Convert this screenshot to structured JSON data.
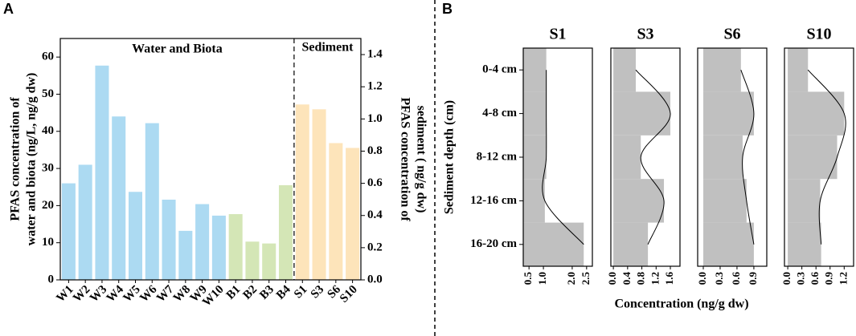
{
  "chart_data": [
    {
      "type": "bar",
      "label": "A",
      "categories": [
        "W1",
        "W2",
        "W3",
        "W4",
        "W5",
        "W6",
        "W7",
        "W8",
        "W9",
        "W10",
        "B1",
        "B2",
        "B3",
        "B4",
        "S1",
        "S3",
        "S6",
        "S10"
      ],
      "series": [
        {
          "name": "Water and Biota",
          "colors": [
            "#acdaf2",
            "#acdaf2",
            "#acdaf2",
            "#acdaf2",
            "#acdaf2",
            "#acdaf2",
            "#acdaf2",
            "#acdaf2",
            "#acdaf2",
            "#acdaf2",
            "#d4e6b6",
            "#d4e6b6",
            "#d4e6b6",
            "#d4e6b6"
          ],
          "values": [
            26,
            31,
            57.7,
            44,
            23.7,
            42.2,
            21.6,
            13.2,
            20.4,
            17.3,
            17.7,
            10.3,
            9.8,
            25.5,
            null,
            null,
            null,
            null
          ]
        },
        {
          "name": "Sediment",
          "color": "#fde4ba",
          "axis": "y2",
          "values": [
            null,
            null,
            null,
            null,
            null,
            null,
            null,
            null,
            null,
            null,
            null,
            null,
            null,
            null,
            1.09,
            1.06,
            0.85,
            0.82
          ]
        }
      ],
      "ylim": [
        0,
        65
      ],
      "yticks": [
        0,
        10,
        20,
        30,
        40,
        50,
        60
      ],
      "y2lim": [
        0,
        1.5
      ],
      "y2ticks": [
        {
          "value": 0,
          "label": "0.0"
        },
        0.2,
        0.4,
        0.6,
        0.8,
        {
          "value": 1,
          "label": "1.0"
        },
        1.2,
        1.4
      ],
      "ylabel": [
        "PFAS concentration of",
        "water and biota (ng/L, ng/g dw)"
      ],
      "y2label": [
        "PFAS concentration of",
        "sediment ( ng/g dw)"
      ]
    },
    {
      "type": "bar",
      "orientation": "horizontal",
      "label": "B",
      "categories": [
        "0-4 cm",
        "4-8 cm",
        "8-12 cm",
        "12-16 cm",
        "16-20 cm"
      ],
      "ylabel": "Sediment depth (cm)",
      "xlabel": "Concentration (ng/g dw)",
      "color": "#c0c0c0",
      "panels": [
        {
          "title": "S1",
          "xlim": [
            0.3,
            2.7
          ],
          "xticks": [
            0.5,
            {
              "value": 1,
              "label": "1.0"
            },
            {
              "value": 2,
              "label": "2.0"
            },
            2.5
          ],
          "values": [
            1.1,
            1.1,
            1.1,
            1.05,
            2.4
          ]
        },
        {
          "title": "S3",
          "xlim": [
            -0.07,
            1.87
          ],
          "xticks": [
            {
              "value": 0,
              "label": "0.0"
            },
            0.4,
            0.8,
            1.2,
            1.6
          ],
          "values": [
            0.63,
            1.6,
            0.77,
            1.42,
            0.97
          ]
        },
        {
          "title": "S6",
          "xlim": [
            -0.1,
            1.13
          ],
          "xticks": [
            {
              "value": 0,
              "label": "0.0"
            },
            0.3,
            0.6,
            0.9
          ],
          "values": [
            0.67,
            0.9,
            0.7,
            0.77,
            0.9
          ]
        },
        {
          "title": "S10",
          "xlim": [
            -0.07,
            1.4
          ],
          "xticks": [
            {
              "value": 0,
              "label": "0.0"
            },
            0.3,
            0.6,
            0.9,
            1.2
          ],
          "values": [
            0.43,
            1.2,
            1.05,
            0.69,
            0.71
          ]
        }
      ]
    }
  ]
}
